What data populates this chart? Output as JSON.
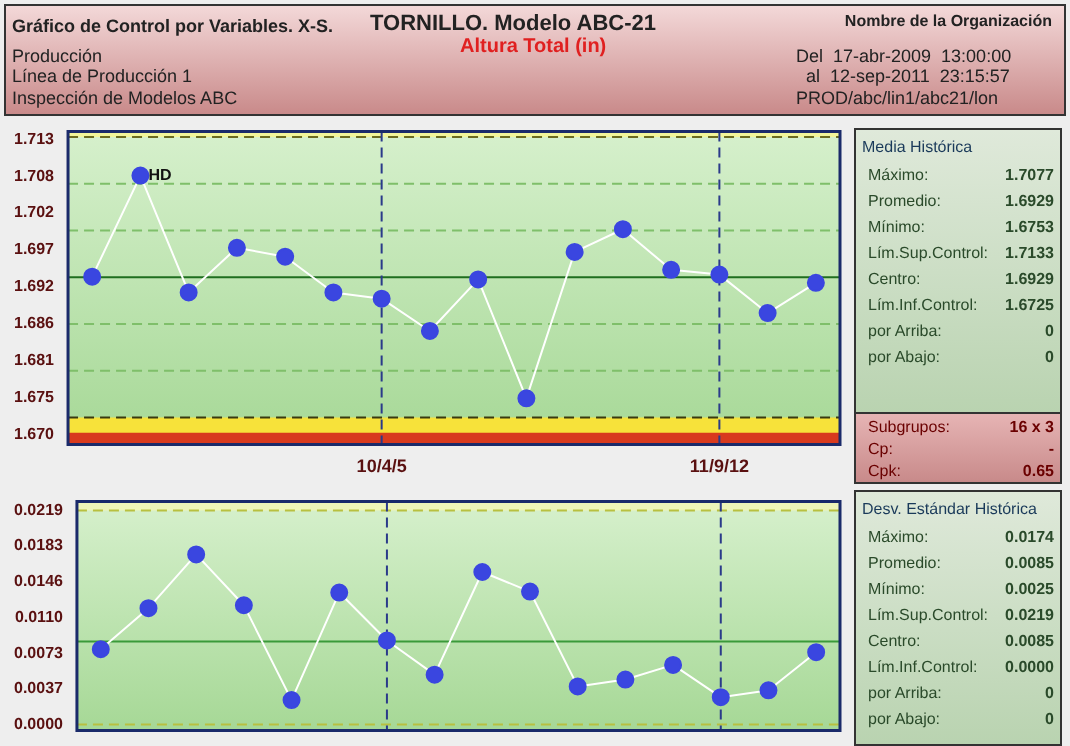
{
  "chart_data": [
    {
      "type": "other",
      "title": "Gráfico de Control por Variables. X-S.",
      "subtitle": "TORNILLO. Modelo ABC-21",
      "annotations": [
        "Altura Total (in)",
        "Nombre de la Organización",
        "Producción",
        "Línea de Producción 1",
        "Inspección de Modelos ABC",
        "Del  17-abr-2009  13:00:00",
        "al  12-sep-2011  23:15:57",
        "PROD/abc/lin1/abc21/lon"
      ]
    },
    {
      "type": "line",
      "categories": [
        null,
        null,
        null,
        null,
        null,
        null,
        "10/4/5",
        null,
        null,
        null,
        null,
        null,
        null,
        "11/9/12",
        null,
        null
      ],
      "series": [
        {
          "color": "#3a46e0",
          "values": [
            1.693,
            1.7077,
            1.6907,
            1.6972,
            1.6959,
            1.6907,
            1.6898,
            1.6851,
            1.6926,
            1.6753,
            1.6966,
            1.6999,
            1.694,
            1.6933,
            1.6877,
            1.6921
          ]
        }
      ],
      "ylim": [
        1.6686,
        1.7141
      ],
      "yticks": [
        {
          "value": 1.67,
          "label": "1.670"
        },
        {
          "value": 1.675375,
          "label": "1.675"
        },
        {
          "value": 1.68075,
          "label": "1.681"
        },
        {
          "value": 1.686125,
          "label": "1.686"
        },
        {
          "value": 1.6915,
          "label": "1.692"
        },
        {
          "value": 1.696875,
          "label": "1.697"
        },
        {
          "value": 1.70225,
          "label": "1.702"
        },
        {
          "value": 1.707625,
          "label": "1.708"
        },
        {
          "value": 1.713,
          "label": "1.713"
        }
      ],
      "marker": "circle",
      "grid": false,
      "legend": false,
      "ref_lines": [
        {
          "axis": "y",
          "value": 1.7133,
          "color": "#6b6b20",
          "line_style": "dashed"
        },
        {
          "axis": "y",
          "value": 1.6725,
          "color": "#3a3a10",
          "line_style": "dashed"
        },
        {
          "axis": "y",
          "value": 1.6929,
          "color": "#1f6e1f",
          "line_style": "solid"
        },
        {
          "axis": "y",
          "value": 1.7065,
          "color": "#7fbf6a",
          "line_style": "dashed"
        },
        {
          "axis": "y",
          "value": 1.6997,
          "color": "#7fbf6a",
          "line_style": "dashed"
        },
        {
          "axis": "y",
          "value": 1.6861,
          "color": "#7fbf6a",
          "line_style": "dashed"
        },
        {
          "axis": "y",
          "value": 1.6793,
          "color": "#7fbf6a",
          "line_style": "dashed"
        },
        {
          "axis": "x",
          "value": "10/4/5",
          "color": "#2a3a8a",
          "line_style": "dashed"
        },
        {
          "axis": "x",
          "value": "11/9/12",
          "color": "#2a3a8a",
          "line_style": "dashed"
        }
      ],
      "bands": [
        {
          "axis": "y",
          "from": 1.7133,
          "to": 1.7141,
          "color": "#f2f59a"
        },
        {
          "axis": "y",
          "from": 1.6686,
          "to": 1.6725,
          "color": "#f7e23a"
        },
        {
          "axis": "y",
          "from": 1.6686,
          "to": 1.6703,
          "color": "#d83a1e"
        }
      ],
      "annotations": [
        {
          "text": "HD",
          "y": 1.7077
        }
      ]
    },
    {
      "type": "other",
      "title": "Media Histórica",
      "annotations": [
        "Máximo:",
        "1.7077",
        "Promedio:",
        "1.6929",
        "Mínimo:",
        "1.6753",
        "Lím.Sup.Control:",
        "1.7133",
        "Centro:",
        "1.6929",
        "Lím.Inf.Control:",
        "1.6725",
        "por Arriba:",
        "0",
        "por Abajo:",
        "0"
      ]
    },
    {
      "type": "other",
      "annotations": [
        "Subgrupos:",
        "16 x 3",
        "Cp:",
        "-",
        "Cpk:",
        "0.65"
      ]
    },
    {
      "type": "line",
      "categories": [
        null,
        null,
        null,
        null,
        null,
        null,
        "10/4/5",
        null,
        null,
        null,
        null,
        null,
        null,
        "11/9/12",
        null,
        null
      ],
      "series": [
        {
          "color": "#3a46e0",
          "values": [
            0.0077,
            0.0119,
            0.0174,
            0.0122,
            0.0025,
            0.0135,
            0.0086,
            0.0051,
            0.0156,
            0.0136,
            0.0039,
            0.0046,
            0.0061,
            0.0028,
            0.0035,
            0.0074
          ]
        }
      ],
      "ylim": [
        -0.0006,
        0.0228
      ],
      "yticks": [
        {
          "value": 0,
          "label": "0.0000"
        },
        {
          "value": 0.00365,
          "label": "0.0037"
        },
        {
          "value": 0.0073,
          "label": "0.0073"
        },
        {
          "value": 0.01095,
          "label": "0.0110"
        },
        {
          "value": 0.0146,
          "label": "0.0146"
        },
        {
          "value": 0.01825,
          "label": "0.0183"
        },
        {
          "value": 0.0219,
          "label": "0.0219"
        }
      ],
      "marker": "circle",
      "grid": false,
      "legend": false,
      "tick_labels": "y",
      "ref_lines": [
        {
          "axis": "y",
          "value": 0.0219,
          "color": "#b8c040",
          "line_style": "dashed"
        },
        {
          "axis": "y",
          "value": 0,
          "color": "#b8c040",
          "line_style": "dashed"
        },
        {
          "axis": "y",
          "value": 0.0085,
          "color": "#3a9a3a",
          "line_style": "solid"
        },
        {
          "axis": "x",
          "value": "10/4/5",
          "color": "#2a3a8a",
          "line_style": "dashed"
        },
        {
          "axis": "x",
          "value": "11/9/12",
          "color": "#2a3a8a",
          "line_style": "dashed"
        }
      ],
      "bands": [
        {
          "axis": "y",
          "from": 0.0219,
          "to": 0.0228,
          "color": "#eef5b8"
        }
      ]
    },
    {
      "type": "other",
      "title": "Desv. Estándar Histórica",
      "annotations": [
        "Máximo:",
        "0.0174",
        "Promedio:",
        "0.0085",
        "Mínimo:",
        "0.0025",
        "Lím.Sup.Control:",
        "0.0219",
        "Centro:",
        "0.0085",
        "Lím.Inf.Control:",
        "0.0000",
        "por Arriba:",
        "0",
        "por Abajo:",
        "0"
      ]
    }
  ]
}
